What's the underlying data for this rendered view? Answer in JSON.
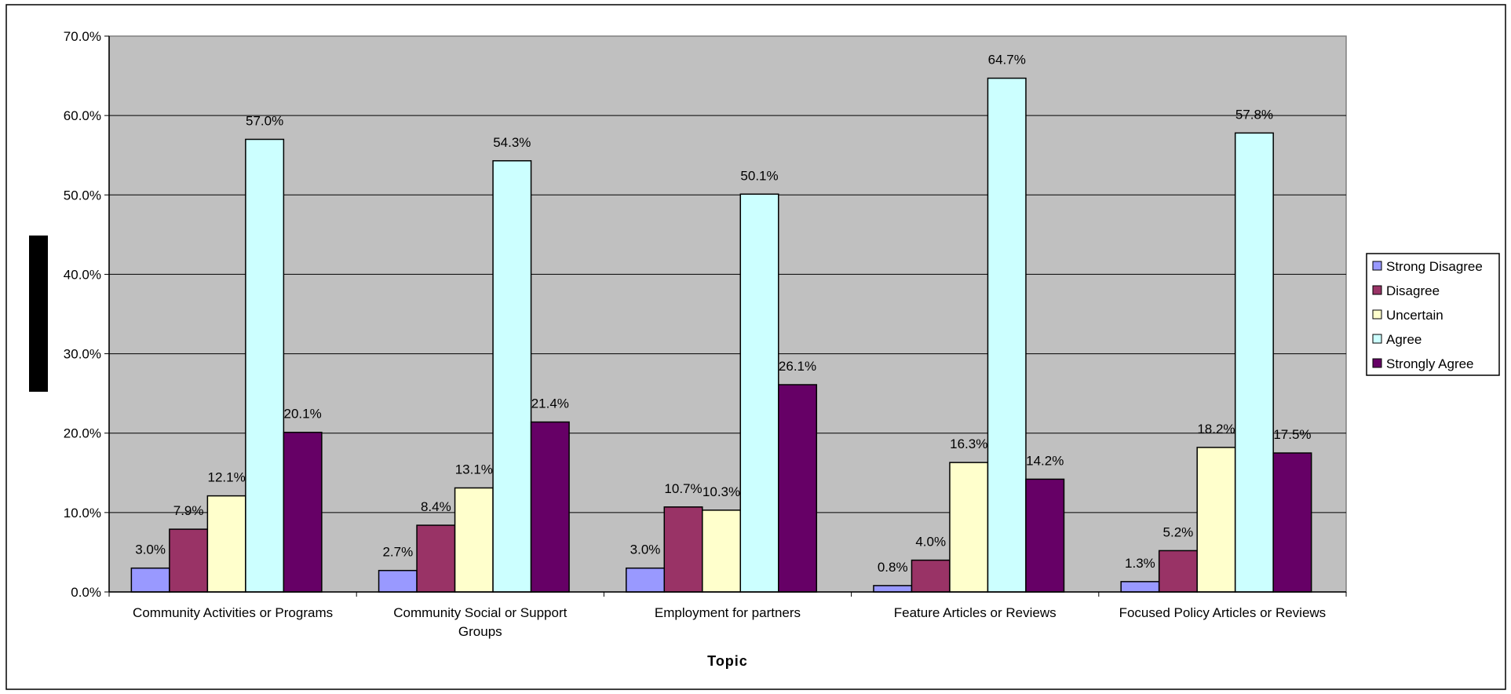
{
  "chart_data": {
    "type": "bar",
    "title": "",
    "xlabel": "Topic",
    "ylabel": "",
    "ylim": [
      0,
      70
    ],
    "yticks": [
      "0.0%",
      "10.0%",
      "20.0%",
      "30.0%",
      "40.0%",
      "50.0%",
      "60.0%",
      "70.0%"
    ],
    "y_unit": "percent",
    "grid": true,
    "legend_position": "right",
    "plot_background": "#C0C0C0",
    "categories": [
      [
        "Community Activities or Programs"
      ],
      [
        "Community Social or Support",
        "Groups"
      ],
      [
        "Employment for partners"
      ],
      [
        "Feature Articles or Reviews"
      ],
      [
        "Focused Policy Articles or Reviews"
      ]
    ],
    "series": [
      {
        "name": "Strong Disagree",
        "color": "#9999FF",
        "values": [
          3.0,
          2.7,
          3.0,
          0.8,
          1.3
        ],
        "labels": [
          "3.0%",
          "2.7%",
          "3.0%",
          "0.8%",
          "1.3%"
        ]
      },
      {
        "name": "Disagree",
        "color": "#993366",
        "values": [
          7.9,
          8.4,
          10.7,
          4.0,
          5.2
        ],
        "labels": [
          "7.9%",
          "8.4%",
          "10.7%",
          "4.0%",
          "5.2%"
        ]
      },
      {
        "name": "Uncertain",
        "color": "#FFFFCC",
        "values": [
          12.1,
          13.1,
          10.3,
          16.3,
          18.2
        ],
        "labels": [
          "12.1%",
          "13.1%",
          "10.3%",
          "16.3%",
          "18.2%"
        ]
      },
      {
        "name": "Agree",
        "color": "#CCFFFF",
        "values": [
          57.0,
          54.3,
          50.1,
          64.7,
          57.8
        ],
        "labels": [
          "57.0%",
          "54.3%",
          "50.1%",
          "64.7%",
          "57.8%"
        ]
      },
      {
        "name": "Strongly Agree",
        "color": "#660066",
        "values": [
          20.1,
          21.4,
          26.1,
          14.2,
          17.5
        ],
        "labels": [
          "20.1%",
          "21.4%",
          "26.1%",
          "14.2%",
          "17.5%"
        ]
      }
    ]
  }
}
